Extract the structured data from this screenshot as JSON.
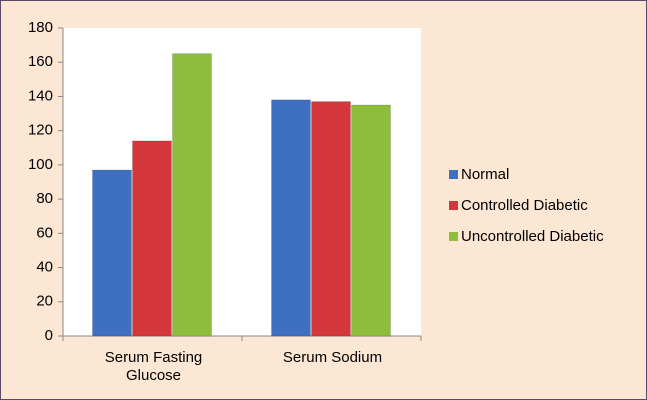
{
  "chart_data": {
    "type": "bar",
    "categories": [
      "Serum Fasting Glucose",
      "Serum Sodium"
    ],
    "series": [
      {
        "name": "Normal",
        "color": "#3f6fc0",
        "values": [
          97,
          138
        ]
      },
      {
        "name": "Controlled Diabetic",
        "color": "#d4373a",
        "values": [
          114,
          137
        ]
      },
      {
        "name": "Uncontrolled Diabetic",
        "color": "#8dbd3c",
        "values": [
          165,
          135
        ]
      }
    ],
    "ylim": [
      0,
      180
    ],
    "yticks": [
      0,
      20,
      40,
      60,
      80,
      100,
      120,
      140,
      160,
      180
    ],
    "legend": "right"
  }
}
